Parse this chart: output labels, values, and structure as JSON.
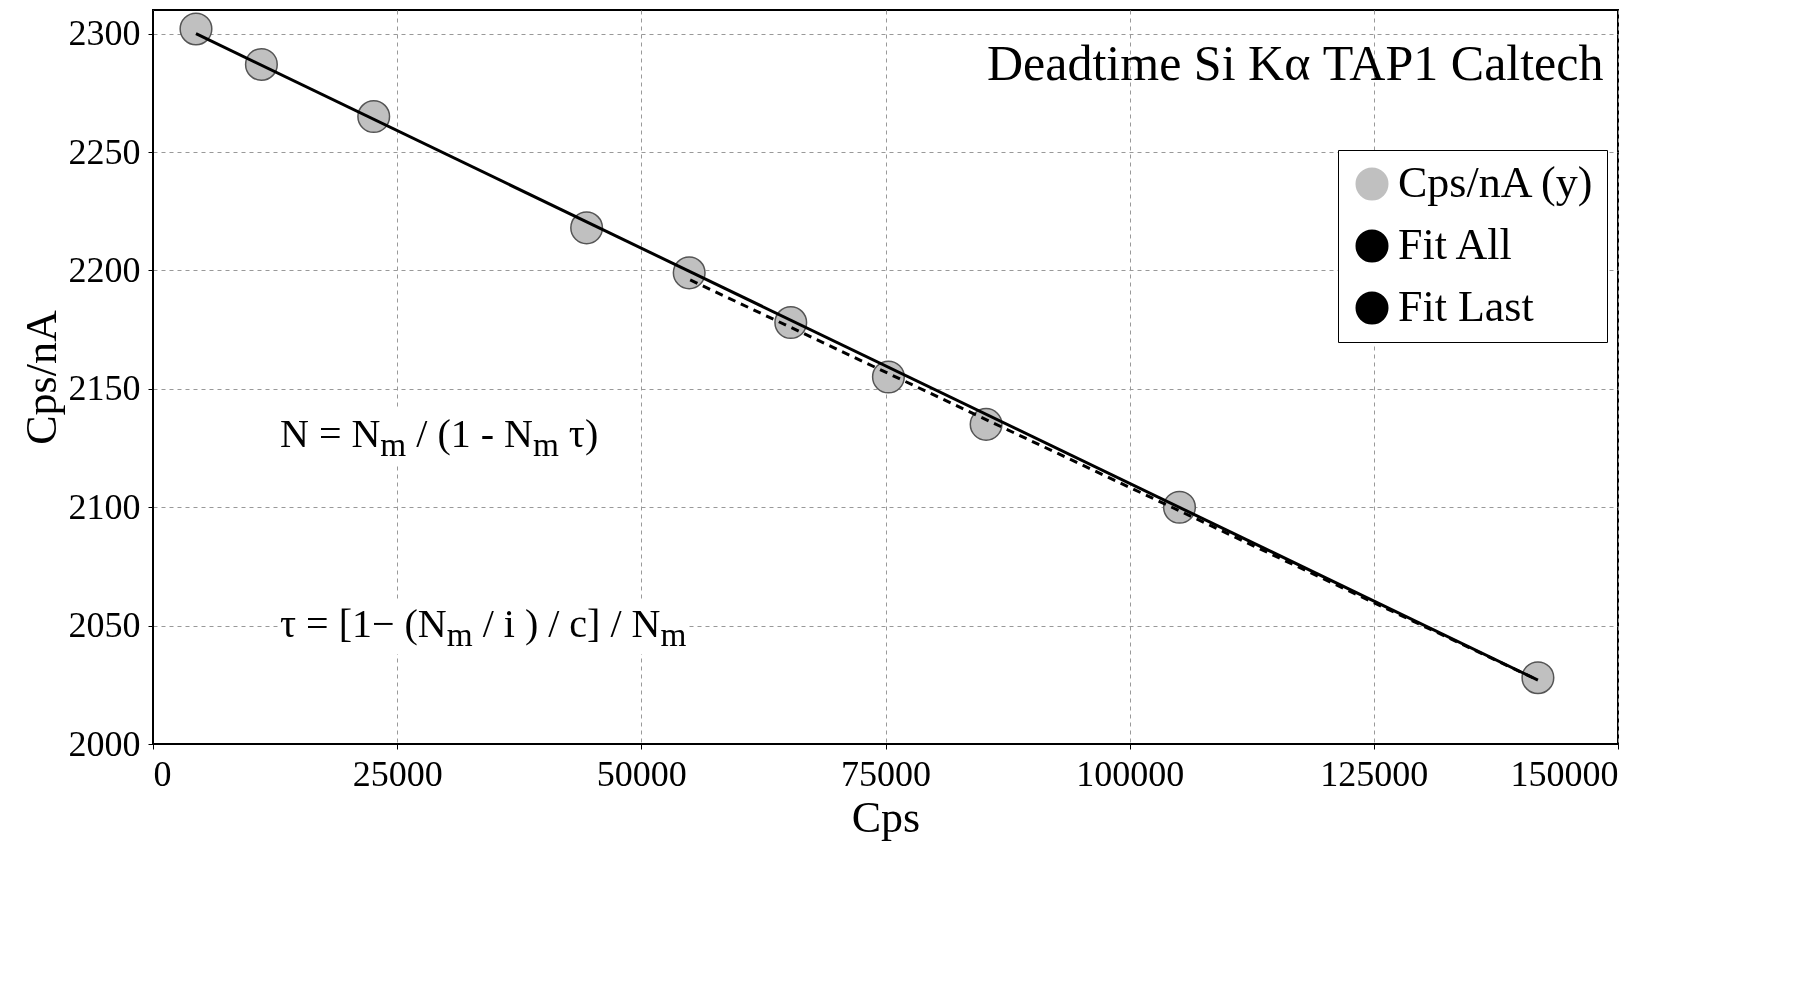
{
  "chart_data": {
    "type": "scatter",
    "title": "Deadtime Si Kα TAP1 Caltech",
    "xlabel": "Cps",
    "ylabel": "Cps/nA",
    "xlim": [
      0,
      150000
    ],
    "ylim": [
      2000,
      2310
    ],
    "xticks": [
      0,
      25000,
      50000,
      75000,
      100000,
      125000,
      150000
    ],
    "yticks": [
      2000,
      2050,
      2100,
      2150,
      2200,
      2250,
      2300
    ],
    "grid": true,
    "legend": "top right",
    "series": [
      {
        "name": "Cps/nA (y)",
        "marker": "circle",
        "color": "#c0c0c0",
        "x": [
          4400,
          11100,
          22600,
          44400,
          54900,
          65300,
          75300,
          85300,
          105100,
          141800
        ],
        "values": [
          2302,
          2287,
          2265,
          2218,
          2199,
          2178,
          2155,
          2135,
          2100,
          2028
        ]
      },
      {
        "name": "Fit All",
        "type": "line",
        "line_style": "solid",
        "color": "#000000",
        "x": [
          4400,
          141800
        ],
        "values": [
          2300,
          2027
        ]
      },
      {
        "name": "Fit Last",
        "type": "line",
        "line_style": "dashed",
        "color": "#000000",
        "x": [
          55000,
          141800
        ],
        "values": [
          2196,
          2027
        ]
      }
    ],
    "annotations": [
      "N = N$_{m}$ / (1 - N$_{m}$ τ)",
      "τ = [1− (N$_{m}$ / i ) / c] / N$_{m}$"
    ]
  }
}
